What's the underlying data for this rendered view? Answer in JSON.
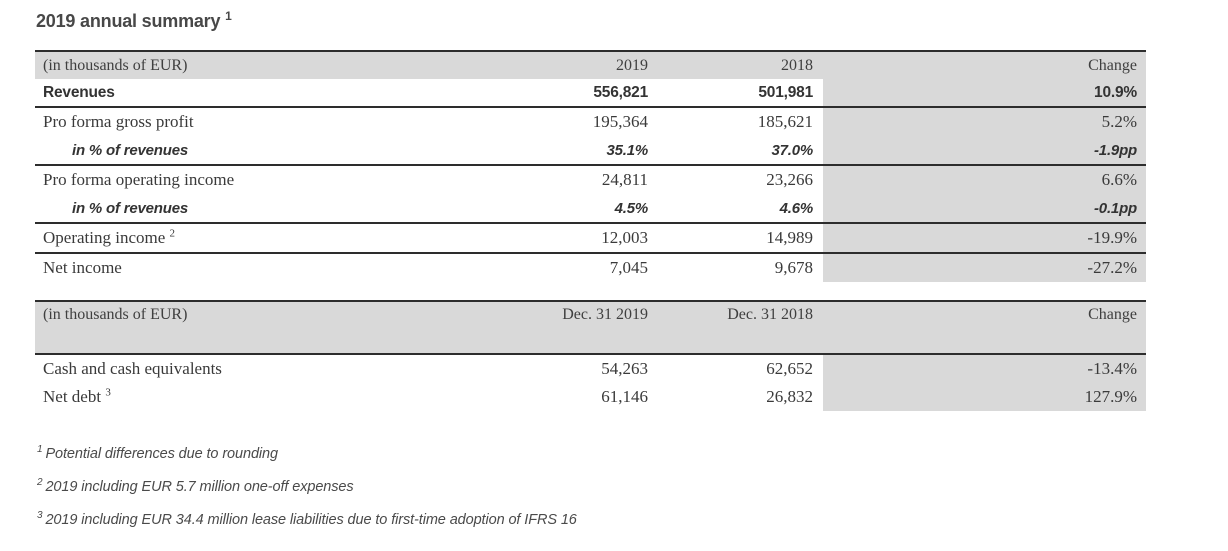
{
  "title": {
    "text": "2019 annual summary",
    "superscript": "1"
  },
  "colors": {
    "band_gray": "#d9d9d9",
    "rule_dark": "#2d2d2d",
    "text_dark": "#3a3a3a"
  },
  "table1": {
    "unit_label": "(in thousands of EUR)",
    "columns": {
      "col1": "2019",
      "col2": "2018",
      "change": "Change"
    },
    "rows": [
      {
        "label": "Revenues",
        "v1": "556,821",
        "v2": "501,981",
        "change": "10.9%"
      },
      {
        "label": "Pro forma gross profit",
        "v1": "195,364",
        "v2": "185,621",
        "change": "5.2%"
      },
      {
        "label": "in % of revenues",
        "v1": "35.1%",
        "v2": "37.0%",
        "change": "-1.9pp"
      },
      {
        "label": "Pro forma operating income",
        "v1": "24,811",
        "v2": "23,266",
        "change": "6.6%"
      },
      {
        "label": "in % of revenues",
        "v1": "4.5%",
        "v2": "4.6%",
        "change": "-0.1pp"
      },
      {
        "label": "Operating income",
        "sup": "2",
        "v1": "12,003",
        "v2": "14,989",
        "change": "-19.9%"
      },
      {
        "label": "Net income",
        "v1": "7,045",
        "v2": "9,678",
        "change": "-27.2%"
      }
    ]
  },
  "table2": {
    "unit_label": "(in thousands of EUR)",
    "columns": {
      "col1": "Dec. 31 2019",
      "col2": "Dec. 31 2018",
      "change": "Change"
    },
    "rows": [
      {
        "label": "Cash and cash equivalents",
        "v1": "54,263",
        "v2": "62,652",
        "change": "-13.4%"
      },
      {
        "label": "Net debt",
        "sup": "3",
        "v1": "61,146",
        "v2": "26,832",
        "change": "127.9%"
      }
    ]
  },
  "footnotes": [
    {
      "marker": "1",
      "text": "Potential differences due to rounding"
    },
    {
      "marker": "2",
      "text": "2019 including EUR 5.7 million one-off expenses"
    },
    {
      "marker": "3",
      "text": "2019 including EUR 34.4 million lease liabilities due to first-time adoption of IFRS 16"
    }
  ]
}
